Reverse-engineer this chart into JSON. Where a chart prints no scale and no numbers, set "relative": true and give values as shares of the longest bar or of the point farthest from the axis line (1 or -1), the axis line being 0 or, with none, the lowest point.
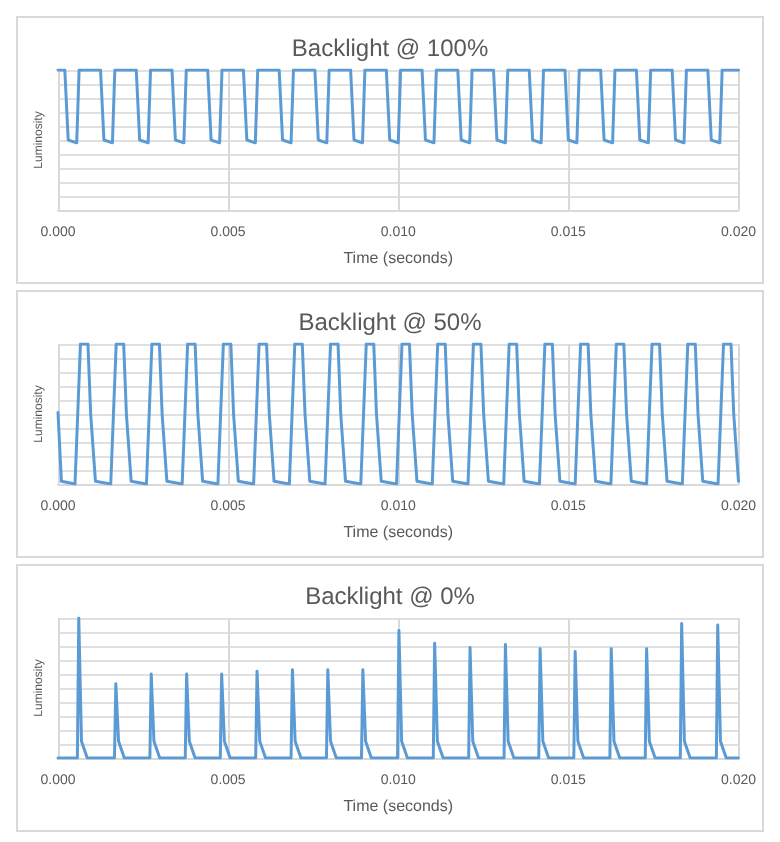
{
  "chart_data": [
    {
      "type": "line",
      "title": "Backlight @ 100%",
      "xlabel": "Time (seconds)",
      "ylabel": "Luminosity",
      "relative": true,
      "grid": true,
      "marker": "none",
      "line_style": "solid",
      "xlim": [
        0,
        0.02
      ],
      "xticks": [
        {
          "value": 0,
          "label": "0.000"
        },
        {
          "value": 0.005,
          "label": "0.005"
        },
        {
          "value": 0.01,
          "label": "0.010"
        },
        {
          "value": 0.015,
          "label": "0.015"
        },
        {
          "value": 0.02,
          "label": "0.020"
        }
      ],
      "series": [
        {
          "color": "#5b9bd5",
          "x": [
            0,
            0.0002,
            0.0003,
            0.00055,
            0.00062,
            0.00125,
            0.00135,
            0.0016,
            0.00167,
            0.0023,
            0.0024,
            0.00265,
            0.00272,
            0.00335,
            0.00345,
            0.0037,
            0.00377,
            0.0044,
            0.0045,
            0.00475,
            0.00482,
            0.00545,
            0.00555,
            0.0058,
            0.00587,
            0.0065,
            0.0066,
            0.00685,
            0.00692,
            0.00755,
            0.00765,
            0.0079,
            0.00797,
            0.0086,
            0.0087,
            0.00895,
            0.00902,
            0.00965,
            0.00975,
            0.01,
            0.01007,
            0.0107,
            0.0108,
            0.01105,
            0.01112,
            0.01175,
            0.01185,
            0.0121,
            0.01217,
            0.0128,
            0.0129,
            0.01315,
            0.01322,
            0.01385,
            0.01395,
            0.0142,
            0.01427,
            0.0149,
            0.015,
            0.01525,
            0.01532,
            0.01595,
            0.01605,
            0.0163,
            0.01637,
            0.017,
            0.0171,
            0.01735,
            0.01742,
            0.01805,
            0.01815,
            0.0184,
            0.01847,
            0.0191,
            0.0192,
            0.01945,
            0.01952,
            0.02
          ],
          "values": [
            1,
            1,
            0.5,
            0.48,
            1,
            1,
            0.5,
            0.48,
            1,
            1,
            0.5,
            0.48,
            1,
            1,
            0.5,
            0.48,
            1,
            1,
            0.5,
            0.48,
            1,
            1,
            0.5,
            0.48,
            1,
            1,
            0.5,
            0.48,
            1,
            1,
            0.5,
            0.48,
            1,
            1,
            0.5,
            0.48,
            1,
            1,
            0.5,
            0.48,
            1,
            1,
            0.5,
            0.48,
            1,
            1,
            0.5,
            0.48,
            1,
            1,
            0.5,
            0.48,
            1,
            1,
            0.5,
            0.48,
            1,
            1,
            0.5,
            0.48,
            1,
            1,
            0.5,
            0.48,
            1,
            1,
            0.5,
            0.48,
            1,
            1,
            0.5,
            0.48,
            1,
            1,
            0.5,
            0.48,
            1,
            1
          ]
        }
      ]
    },
    {
      "type": "line",
      "title": "Backlight @ 50%",
      "xlabel": "Time (seconds)",
      "ylabel": "Luminosity",
      "relative": true,
      "grid": true,
      "marker": "none",
      "line_style": "solid",
      "xlim": [
        0,
        0.02
      ],
      "xticks": [
        {
          "value": 0,
          "label": "0.000"
        },
        {
          "value": 0.005,
          "label": "0.005"
        },
        {
          "value": 0.01,
          "label": "0.010"
        },
        {
          "value": 0.015,
          "label": "0.015"
        },
        {
          "value": 0.02,
          "label": "0.020"
        }
      ],
      "series": [
        {
          "color": "#5b9bd5",
          "x": [
            0,
            0.0001,
            0.0005,
            0.00058,
            0.00066,
            0.00088,
            0.00096,
            0.0011,
            0.00155,
            0.00163,
            0.00171,
            0.00193,
            0.00201,
            0.00215,
            0.0026,
            0.00268,
            0.00276,
            0.00298,
            0.00306,
            0.0032,
            0.00365,
            0.00373,
            0.00381,
            0.00403,
            0.00411,
            0.00425,
            0.0047,
            0.00478,
            0.00486,
            0.00508,
            0.00516,
            0.0053,
            0.00575,
            0.00583,
            0.00591,
            0.00613,
            0.00621,
            0.00635,
            0.0068,
            0.00688,
            0.00696,
            0.00718,
            0.00726,
            0.0074,
            0.00785,
            0.00793,
            0.00801,
            0.00823,
            0.00831,
            0.00845,
            0.0089,
            0.00898,
            0.00906,
            0.00928,
            0.00936,
            0.0095,
            0.00995,
            0.01003,
            0.01011,
            0.01033,
            0.01041,
            0.01055,
            0.011,
            0.01108,
            0.01116,
            0.01138,
            0.01146,
            0.0116,
            0.01205,
            0.01213,
            0.01221,
            0.01243,
            0.01251,
            0.01265,
            0.0131,
            0.01318,
            0.01326,
            0.01348,
            0.01356,
            0.0137,
            0.01415,
            0.01423,
            0.01431,
            0.01453,
            0.01461,
            0.01475,
            0.0152,
            0.01528,
            0.01536,
            0.01558,
            0.01566,
            0.0158,
            0.01625,
            0.01633,
            0.01641,
            0.01663,
            0.01671,
            0.01685,
            0.0173,
            0.01738,
            0.01746,
            0.01768,
            0.01776,
            0.0179,
            0.01835,
            0.01843,
            0.01851,
            0.01873,
            0.01881,
            0.01895,
            0.0194,
            0.01948,
            0.01956,
            0.01978,
            0.01986,
            0.02
          ],
          "values": [
            0.51,
            0.02,
            0,
            0.5,
            1,
            1,
            0.5,
            0.02,
            0,
            0.5,
            1,
            1,
            0.5,
            0.02,
            0,
            0.5,
            1,
            1,
            0.5,
            0.02,
            0,
            0.5,
            1,
            1,
            0.5,
            0.02,
            0,
            0.5,
            1,
            1,
            0.5,
            0.02,
            0,
            0.5,
            1,
            1,
            0.5,
            0.02,
            0,
            0.5,
            1,
            1,
            0.5,
            0.02,
            0,
            0.5,
            1,
            1,
            0.5,
            0.02,
            0,
            0.5,
            1,
            1,
            0.5,
            0.02,
            0,
            0.5,
            1,
            1,
            0.5,
            0.02,
            0,
            0.5,
            1,
            1,
            0.5,
            0.02,
            0,
            0.5,
            1,
            1,
            0.5,
            0.02,
            0,
            0.5,
            1,
            1,
            0.5,
            0.02,
            0,
            0.5,
            1,
            1,
            0.5,
            0.02,
            0,
            0.5,
            1,
            1,
            0.5,
            0.02,
            0,
            0.5,
            1,
            1,
            0.5,
            0.02,
            0,
            0.5,
            1,
            1,
            0.5,
            0.02,
            0,
            0.5,
            1,
            1,
            0.5,
            0.02,
            0,
            0.5,
            1,
            1,
            0.5,
            0.02
          ]
        }
      ]
    },
    {
      "type": "line",
      "title": "Backlight @ 0%",
      "xlabel": "Time (seconds)",
      "ylabel": "Luminosity",
      "relative": true,
      "grid": true,
      "marker": "none",
      "line_style": "solid",
      "xlim": [
        0,
        0.02
      ],
      "xticks": [
        {
          "value": 0,
          "label": "0.000"
        },
        {
          "value": 0.005,
          "label": "0.005"
        },
        {
          "value": 0.01,
          "label": "0.010"
        },
        {
          "value": 0.015,
          "label": "0.015"
        },
        {
          "value": 0.02,
          "label": "0.020"
        }
      ],
      "series": [
        {
          "color": "#5b9bd5",
          "x": [
            0,
            0.00057,
            0.00061,
            0.00069,
            0.00086,
            0.00166,
            0.0017,
            0.00178,
            0.00195,
            0.0027,
            0.00274,
            0.00282,
            0.00299,
            0.00374,
            0.00378,
            0.00386,
            0.00403,
            0.00477,
            0.00481,
            0.00489,
            0.00506,
            0.00581,
            0.00585,
            0.00593,
            0.0061,
            0.00685,
            0.00689,
            0.00697,
            0.00714,
            0.00789,
            0.00793,
            0.00801,
            0.00818,
            0.00892,
            0.00896,
            0.00904,
            0.00921,
            0.00998,
            0.01002,
            0.0101,
            0.01027,
            0.01103,
            0.01107,
            0.01115,
            0.01132,
            0.01207,
            0.01211,
            0.01219,
            0.01236,
            0.01311,
            0.01315,
            0.01323,
            0.0134,
            0.01413,
            0.01417,
            0.01425,
            0.01442,
            0.01516,
            0.0152,
            0.01528,
            0.01545,
            0.01622,
            0.01626,
            0.01634,
            0.01651,
            0.01726,
            0.0173,
            0.01738,
            0.01755,
            0.01829,
            0.01833,
            0.01841,
            0.01858,
            0.01935,
            0.01939,
            0.01947,
            0.01964,
            0.02
          ],
          "values": [
            0,
            0,
            1,
            0.12,
            0,
            0,
            0.53,
            0.12,
            0,
            0,
            0.6,
            0.12,
            0,
            0,
            0.6,
            0.12,
            0,
            0,
            0.6,
            0.12,
            0,
            0,
            0.62,
            0.12,
            0,
            0,
            0.63,
            0.12,
            0,
            0,
            0.63,
            0.12,
            0,
            0,
            0.63,
            0.12,
            0,
            0,
            0.91,
            0.12,
            0,
            0,
            0.82,
            0.12,
            0,
            0,
            0.79,
            0.12,
            0,
            0,
            0.81,
            0.12,
            0,
            0,
            0.78,
            0.12,
            0,
            0,
            0.76,
            0.12,
            0,
            0,
            0.78,
            0.12,
            0,
            0,
            0.78,
            0.12,
            0,
            0,
            0.96,
            0.12,
            0,
            0,
            0.95,
            0.12,
            0,
            0
          ]
        }
      ]
    }
  ]
}
